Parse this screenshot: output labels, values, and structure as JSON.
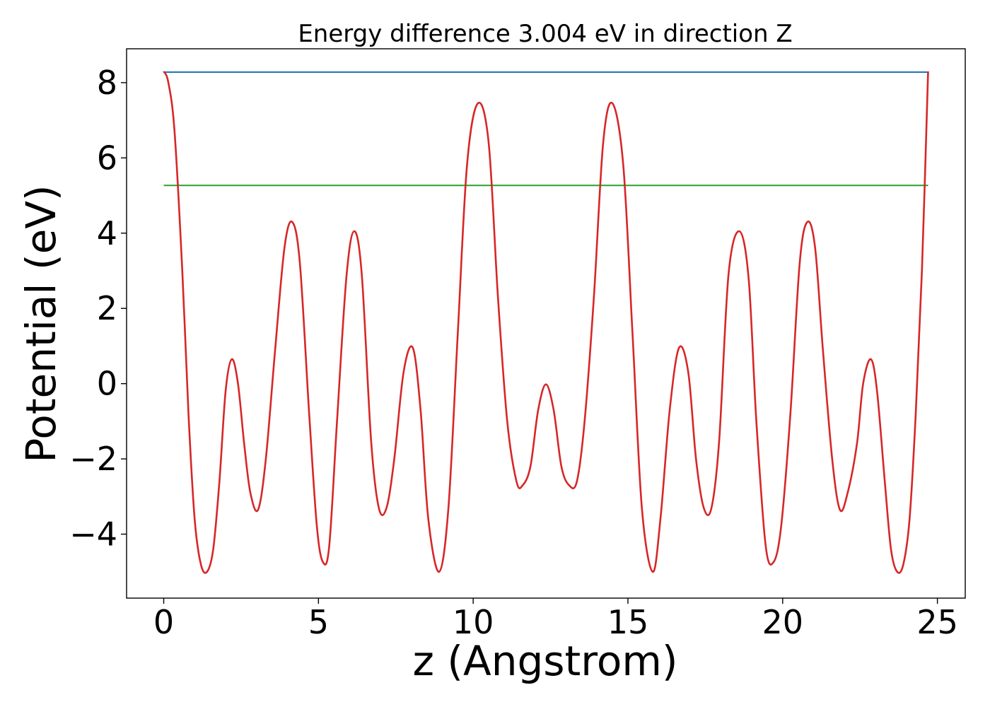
{
  "chart_data": {
    "type": "line",
    "title": "Energy difference 3.004 eV in direction Z",
    "xlabel": "z (Angstrom)",
    "ylabel": "Potential (eV)",
    "xlim": [
      -1.2,
      25.9
    ],
    "ylim": [
      -5.7,
      8.9
    ],
    "xticks": [
      0,
      5,
      10,
      15,
      20,
      25
    ],
    "xtick_labels": [
      "0",
      "5",
      "10",
      "15",
      "20",
      "25"
    ],
    "yticks": [
      -4,
      -2,
      0,
      2,
      4,
      6,
      8
    ],
    "ytick_labels": [
      "−4",
      "−2",
      "0",
      "2",
      "4",
      "6",
      "8"
    ],
    "grid": false,
    "legend": "none",
    "series": [
      {
        "color": "#d62728",
        "x": [
          0.0,
          0.15,
          0.35,
          0.6,
          0.8,
          1.0,
          1.2,
          1.4,
          1.6,
          1.8,
          2.0,
          2.2,
          2.4,
          2.6,
          2.8,
          3.05,
          3.3,
          3.6,
          3.9,
          4.15,
          4.4,
          4.7,
          4.95,
          5.15,
          5.35,
          5.6,
          5.9,
          6.15,
          6.4,
          6.7,
          6.95,
          7.2,
          7.45,
          7.75,
          8.05,
          8.3,
          8.55,
          8.9,
          9.2,
          9.5,
          9.8,
          10.15,
          10.5,
          10.8,
          11.1,
          11.4,
          11.6,
          11.85,
          12.1,
          12.35,
          12.6,
          12.85,
          13.1,
          13.35,
          13.6,
          13.9,
          14.2,
          14.5,
          14.85,
          15.15,
          15.45,
          15.8,
          16.05,
          16.35,
          16.65,
          16.95,
          17.2,
          17.45,
          17.7,
          17.95,
          18.25,
          18.6,
          18.9,
          19.15,
          19.45,
          19.7,
          19.95,
          20.25,
          20.55,
          20.8,
          21.05,
          21.3,
          21.6,
          21.85,
          22.1,
          22.4,
          22.6,
          22.85,
          23.05,
          23.3,
          23.5,
          23.7,
          23.9,
          24.1,
          24.3,
          24.5,
          24.7
        ],
        "values": [
          8.3,
          8.0,
          6.7,
          3.0,
          -0.8,
          -3.6,
          -4.8,
          -5.0,
          -4.4,
          -2.6,
          -0.2,
          0.65,
          0.0,
          -1.6,
          -2.9,
          -3.35,
          -2.0,
          0.9,
          3.6,
          4.3,
          3.2,
          -0.8,
          -3.8,
          -4.75,
          -4.3,
          -1.0,
          2.8,
          4.05,
          2.9,
          -1.5,
          -3.3,
          -3.3,
          -2.0,
          0.3,
          0.95,
          -0.7,
          -3.6,
          -5.0,
          -3.3,
          1.3,
          5.8,
          7.45,
          6.4,
          2.3,
          -1.0,
          -2.6,
          -2.7,
          -2.2,
          -0.7,
          -0.02,
          -0.7,
          -2.2,
          -2.7,
          -2.6,
          -1.0,
          2.3,
          6.4,
          7.45,
          5.8,
          1.3,
          -3.3,
          -5.0,
          -3.6,
          -0.7,
          0.95,
          0.3,
          -2.0,
          -3.3,
          -3.3,
          -1.5,
          2.9,
          4.05,
          2.8,
          -1.0,
          -4.3,
          -4.75,
          -3.8,
          -0.8,
          3.2,
          4.3,
          3.6,
          0.9,
          -2.0,
          -3.35,
          -2.9,
          -1.6,
          0.0,
          0.65,
          -0.2,
          -2.6,
          -4.4,
          -5.0,
          -4.8,
          -3.6,
          -0.8,
          3.0,
          8.3
        ]
      },
      {
        "color": "#1f77b4",
        "x": [
          0.0,
          24.7
        ],
        "values": [
          8.28,
          8.28
        ]
      },
      {
        "color": "#2ca02c",
        "x": [
          0.0,
          24.7
        ],
        "values": [
          5.27,
          5.27
        ]
      }
    ]
  }
}
